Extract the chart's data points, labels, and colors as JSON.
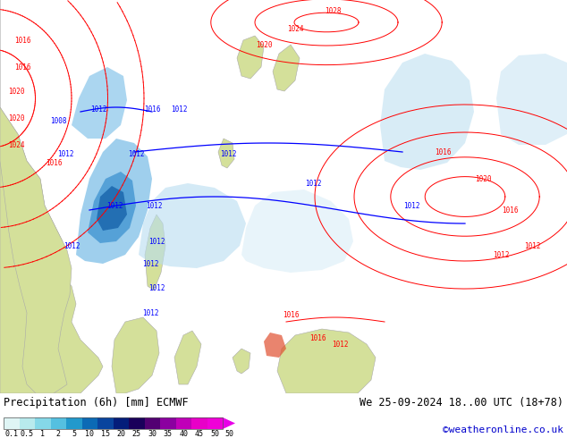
{
  "title_left": "Precipitation (6h) [mm] ECMWF",
  "title_right": "We 25-09-2024 18..00 UTC (18+78)",
  "copyright": "©weatheronline.co.uk",
  "colorbar_labels": [
    "0.1",
    "0.5",
    "1",
    "2",
    "5",
    "10",
    "15",
    "20",
    "25",
    "30",
    "35",
    "40",
    "45",
    "50"
  ],
  "colorbar_colors": [
    "#dff5f5",
    "#b8eaed",
    "#85d8e8",
    "#55c0e0",
    "#2299cc",
    "#0c6ab5",
    "#09449e",
    "#041d7a",
    "#1a005a",
    "#520072",
    "#8b00a0",
    "#c000b8",
    "#e800c8",
    "#f000d8"
  ],
  "bg_color": "#ffffff",
  "title_color": "#000000",
  "copyright_color": "#0000cc",
  "map_colors": {
    "ocean_base": "#c8e8f5",
    "ocean_light": "#dff0f8",
    "precip_light": "#b8ddf0",
    "precip_mid": "#7fc0e8",
    "precip_heavy": "#4899d4",
    "precip_dark": "#1e6ab0",
    "land_yellow": "#d4e09a",
    "land_green": "#b8d080"
  }
}
